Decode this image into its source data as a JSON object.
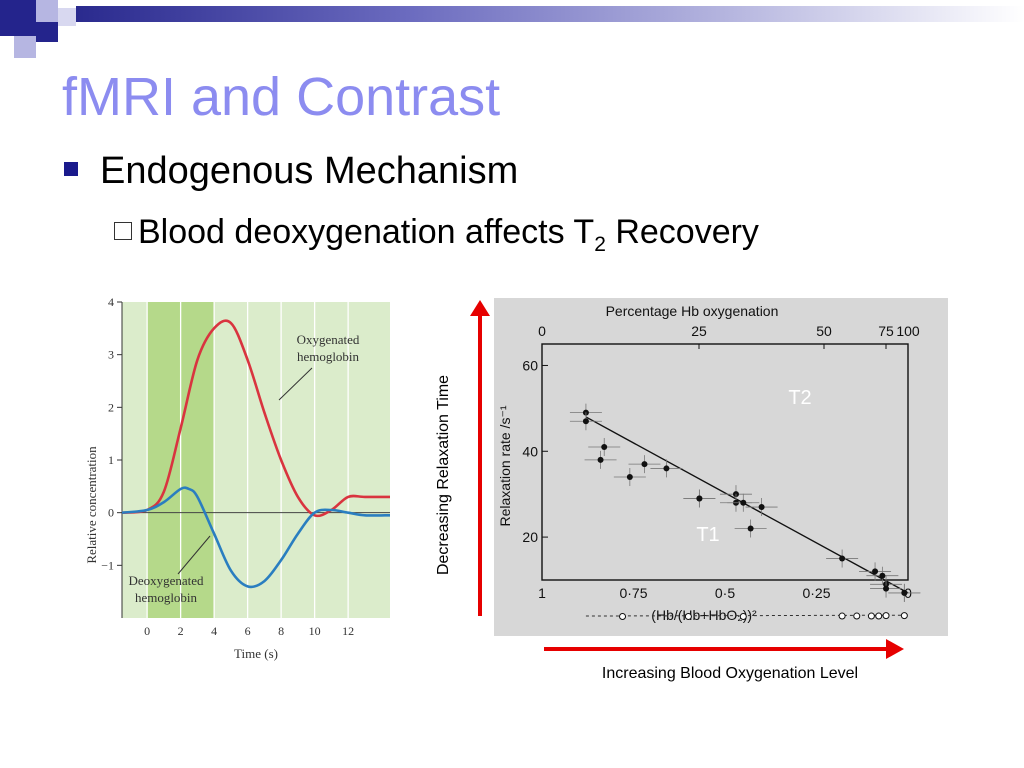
{
  "slide": {
    "title": "fMRI and Contrast",
    "bullet_level1": "Endogenous Mechanism",
    "bullet_level2_prefix": "Blood deoxygenation affects T",
    "bullet_level2_sub": "2",
    "bullet_level2_suffix": " Recovery",
    "accent_color": "#8c8cf0",
    "bullet_color": "#1a1a8c",
    "arrow_color": "#e60000"
  },
  "captions": {
    "x_arrow": "Increasing Blood Oxygenation Level",
    "y_arrow": "Decreasing Relaxation Time"
  },
  "chart_data": [
    {
      "type": "line",
      "xlabel": "Time (s)",
      "ylabel": "Relative concentration",
      "xlim": [
        -1.5,
        14.5
      ],
      "ylim": [
        -2.0,
        4.0
      ],
      "xticks": [
        0,
        2,
        4,
        6,
        8,
        10,
        12
      ],
      "yticks": [
        -1,
        0,
        1,
        2,
        3,
        4
      ],
      "ytick_labels": [
        "−1",
        "0",
        "1",
        "2",
        "3",
        "4"
      ],
      "stimulus_window": [
        0,
        4
      ],
      "stimulus_color": "#b5d98a",
      "background_color": "#dbeccb",
      "series": [
        {
          "name": "Oxygenated hemoglobin",
          "color": "#d9343f",
          "x": [
            -1.5,
            0,
            1,
            2,
            3,
            4,
            5,
            6,
            7,
            8,
            9,
            10,
            11,
            12,
            13,
            14.5
          ],
          "y": [
            0,
            0.05,
            0.4,
            1.6,
            2.9,
            3.5,
            3.6,
            2.9,
            1.9,
            1.0,
            0.3,
            -0.05,
            0.05,
            0.3,
            0.3,
            0.3
          ]
        },
        {
          "name": "Deoxygenated hemoglobin",
          "color": "#2a7ec0",
          "x": [
            -1.5,
            0,
            1,
            2,
            2.5,
            3,
            4,
            5,
            6,
            7,
            8,
            9,
            10,
            11,
            12,
            13,
            14.5
          ],
          "y": [
            0,
            0.05,
            0.2,
            0.45,
            0.45,
            0.3,
            -0.4,
            -1.1,
            -1.4,
            -1.3,
            -0.9,
            -0.4,
            0.0,
            0.05,
            0.0,
            -0.05,
            -0.05
          ]
        }
      ]
    },
    {
      "type": "scatter",
      "title": "Percentage Hb oxygenation",
      "top_ticks": [
        "0",
        "25",
        "50",
        "75",
        "100"
      ],
      "ylabel": "Relaxation rate /s⁻¹",
      "xlabel": "(Hb/(Hb+HbO₂))²",
      "x_tick_labels": [
        "1",
        "0·75",
        "0·5",
        "0·25",
        "0"
      ],
      "y_tick_labels": [
        "20",
        "40",
        "60"
      ],
      "xlim": [
        1.0,
        0.0
      ],
      "ylim": [
        10,
        65
      ],
      "region_labels": [
        "T2",
        "T1"
      ],
      "series": [
        {
          "name": "T2",
          "x": [
            0.88,
            0.88,
            0.84,
            0.83,
            0.76,
            0.72,
            0.66,
            0.57,
            0.57,
            0.47,
            0.47,
            0.45,
            0.43,
            0.4,
            0.18,
            0.09,
            0.07,
            0.06,
            0.06,
            0.01,
            0.01
          ],
          "y": [
            49,
            47,
            38,
            41,
            34,
            37,
            36,
            29,
            29,
            30,
            28,
            28,
            22,
            27,
            15,
            12,
            11,
            9,
            8,
            7,
            7
          ],
          "fit_line": {
            "x": [
              0.88,
              0.0
            ],
            "y": [
              48,
              7
            ]
          }
        },
        {
          "name": "T1",
          "x": [
            0.78,
            0.6,
            0.45,
            0.18,
            0.14,
            0.1,
            0.08,
            0.06,
            0.01
          ],
          "y": [
            1.5,
            1.5,
            1.5,
            1.6,
            1.6,
            1.6,
            1.6,
            1.7,
            1.7
          ]
        }
      ]
    }
  ]
}
